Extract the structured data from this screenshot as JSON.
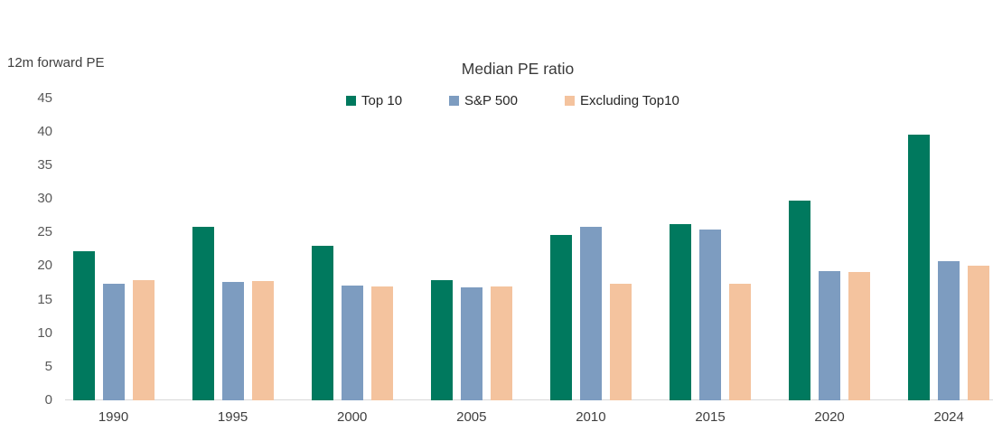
{
  "chart_data": {
    "type": "bar",
    "title": "Median PE ratio",
    "y_axis_title": "12m forward PE",
    "xlabel": "",
    "ylabel": "12m forward PE",
    "categories": [
      "1990",
      "1995",
      "2000",
      "2005",
      "2010",
      "2015",
      "2020",
      "2024"
    ],
    "series": [
      {
        "name": "Top 10",
        "color": "#00795E",
        "values": [
          22.2,
          25.9,
          23.0,
          17.9,
          24.6,
          26.3,
          29.8,
          39.5
        ]
      },
      {
        "name": "S&P 500",
        "color": "#7D9CC0",
        "values": [
          17.4,
          17.6,
          17.1,
          16.8,
          25.9,
          25.5,
          19.2,
          20.7
        ]
      },
      {
        "name": "Excluding Top10",
        "color": "#F4C39E",
        "values": [
          17.9,
          17.8,
          16.9,
          16.9,
          17.4,
          17.4,
          19.1,
          20.1
        ]
      }
    ],
    "y_ticks": [
      45,
      40,
      35,
      30,
      25,
      20,
      15,
      10,
      5,
      0
    ],
    "ylim": [
      0,
      45
    ],
    "legend_position": "top",
    "grid": false,
    "colors": {
      "axis_line": "#d9d9d9",
      "tick_label": "#595959",
      "title_text": "#3a3a3a",
      "background": "#ffffff"
    }
  }
}
